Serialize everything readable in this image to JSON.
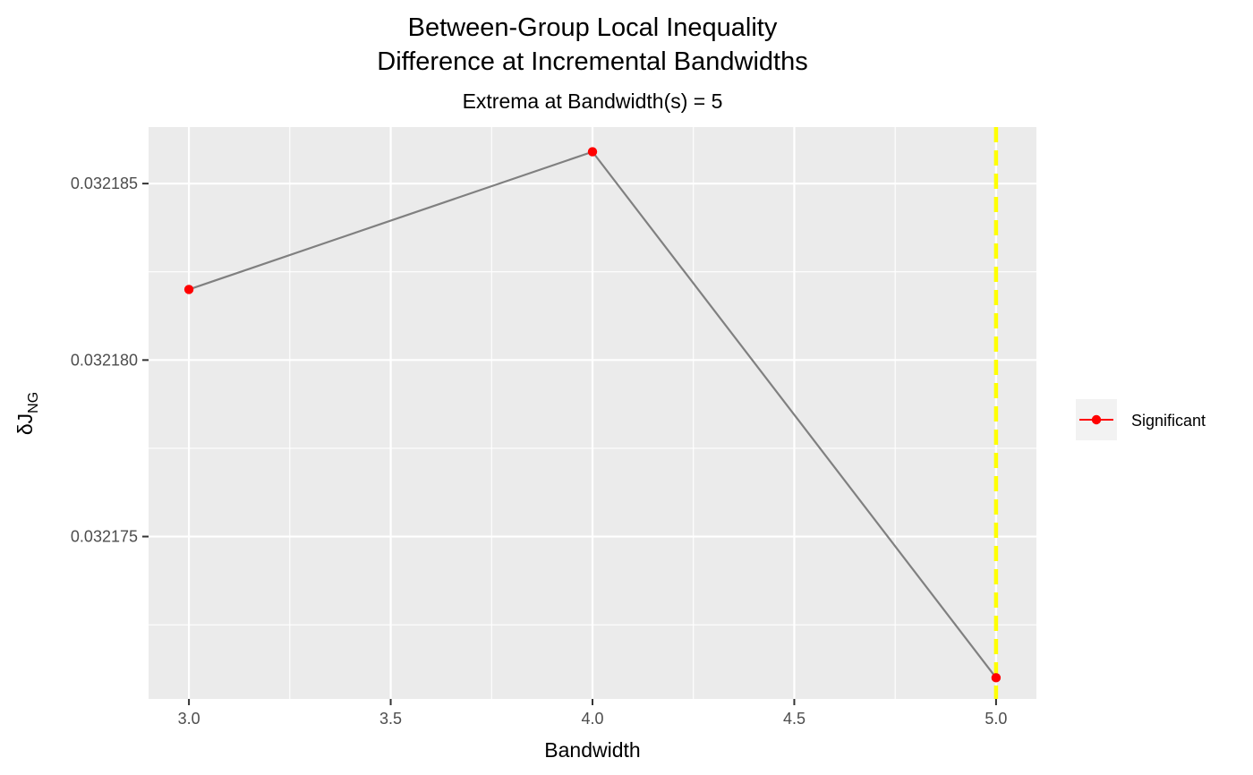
{
  "chart_data": {
    "type": "line",
    "title_line1": "Between-Group Local Inequality",
    "title_line2": "Difference at Incremental Bandwidths",
    "subtitle": "Extrema at Bandwidth(s) = 5",
    "xlabel": "Bandwidth",
    "ylabel_main": "δJ",
    "ylabel_sub": "NG",
    "xlim": [
      2.9,
      5.1
    ],
    "ylim": [
      0.0321704,
      0.0321866
    ],
    "x_ticks": [
      3.0,
      3.5,
      4.0,
      4.5,
      5.0
    ],
    "x_tick_labels": [
      "3.0",
      "3.5",
      "4.0",
      "4.5",
      "5.0"
    ],
    "y_ticks": [
      0.032175,
      0.03218,
      0.032185
    ],
    "y_tick_labels": [
      "0.032175",
      "0.032180",
      "0.032185"
    ],
    "grid": true,
    "series": [
      {
        "name": "Significant",
        "x": [
          3.0,
          4.0,
          5.0
        ],
        "y": [
          0.032182,
          0.0321859,
          0.032171
        ],
        "line_color": "#808080",
        "point_color": "#ff0000"
      }
    ],
    "vline": {
      "x": 5.0,
      "color": "#ffff00",
      "style": "dashed"
    },
    "legend": {
      "position": "right",
      "entries": [
        "Significant"
      ]
    },
    "colors": {
      "panel_bg": "#ebebeb",
      "grid": "#ffffff",
      "tick": "#333333"
    }
  }
}
